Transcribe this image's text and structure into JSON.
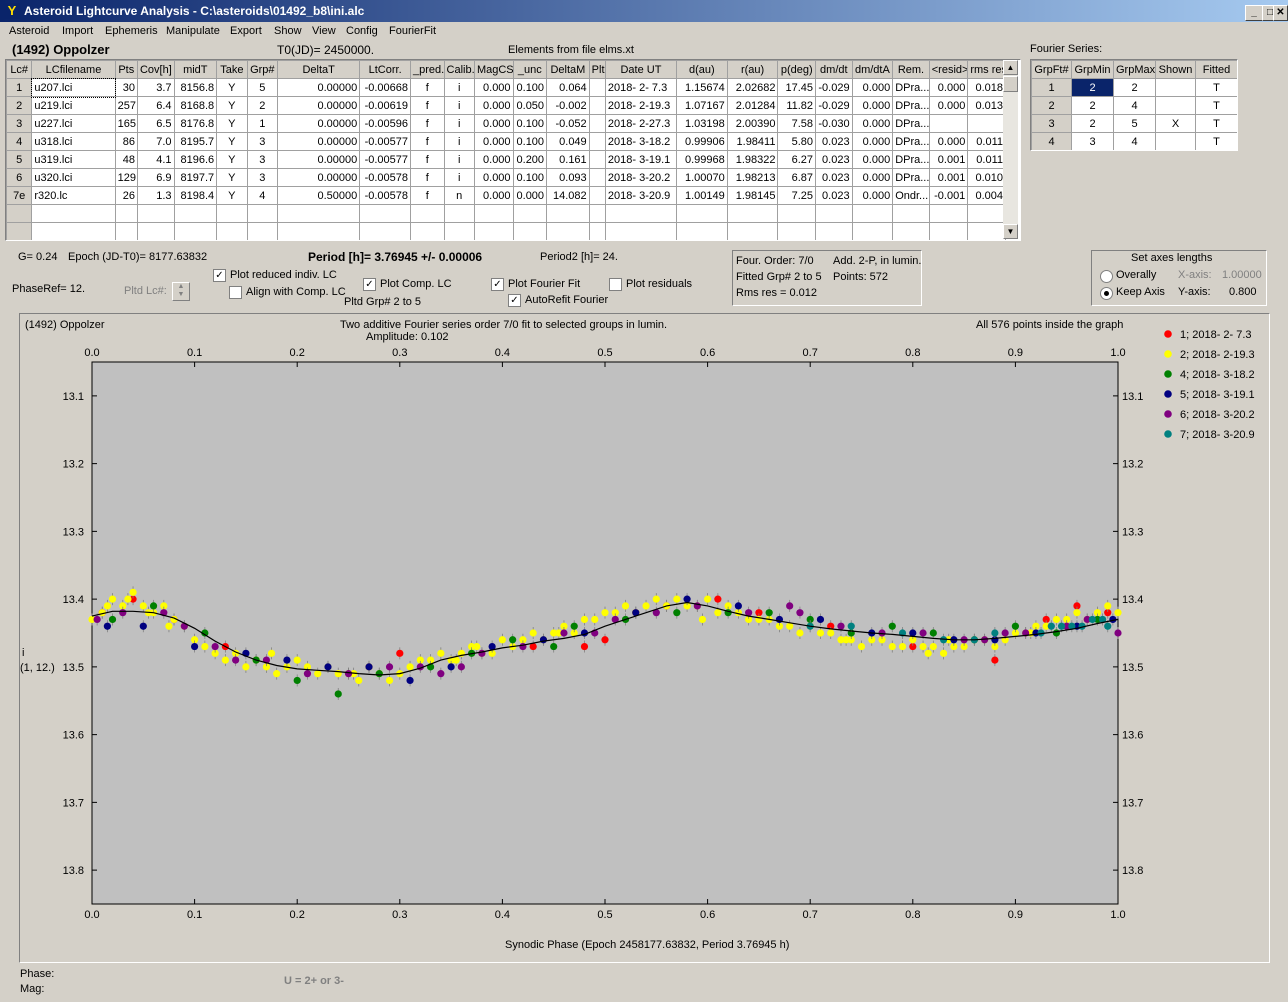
{
  "window": {
    "title": "Asteroid Lightcurve Analysis - C:\\asteroids\\01492_b8\\ini.alc",
    "app_icon_letter": "Y"
  },
  "menu": [
    "Asteroid",
    "Import",
    "Ephemeris",
    "Manipulate",
    "Export",
    "Show",
    "View",
    "Config",
    "FourierFit"
  ],
  "header": {
    "object": "(1492) Oppolzer",
    "t0": "T0(JD)= 2450000.",
    "elements": "Elements from file elms.xt",
    "fourier_label": "Fourier Series:"
  },
  "lc_table": {
    "columns": [
      "Lc#",
      "LCfilename",
      "Pts",
      "Cov[h]",
      "midT",
      "Take",
      "Grp#",
      "DeltaT",
      "LtCorr.",
      "_pred.",
      "Calib.",
      "MagCS",
      "_unc",
      "DeltaM",
      "Plt",
      "Date UT",
      "d(au)",
      "r(au)",
      "p(deg)",
      "dm/dt",
      "dm/dtA",
      "Rem.",
      "<resid>",
      "rms res"
    ],
    "rows": [
      [
        "1",
        "u207.lci",
        "30",
        "3.7",
        "8156.8",
        "Y",
        "5",
        "0.00000",
        "-0.00668",
        "f",
        "i",
        "0.000",
        "0.100",
        "0.064",
        "",
        "2018- 2- 7.3",
        "1.15674",
        "2.02682",
        "17.45",
        "-0.029",
        "0.000",
        "DPra...",
        "0.000",
        "0.018"
      ],
      [
        "2",
        "u219.lci",
        "257",
        "6.4",
        "8168.8",
        "Y",
        "2",
        "0.00000",
        "-0.00619",
        "f",
        "i",
        "0.000",
        "0.050",
        "-0.002",
        "",
        "2018- 2-19.3",
        "1.07167",
        "2.01284",
        "11.82",
        "-0.029",
        "0.000",
        "DPra...",
        "0.000",
        "0.013"
      ],
      [
        "3",
        "u227.lci",
        "165",
        "6.5",
        "8176.8",
        "Y",
        "1",
        "0.00000",
        "-0.00596",
        "f",
        "i",
        "0.000",
        "0.100",
        "-0.052",
        "",
        "2018- 2-27.3",
        "1.03198",
        "2.00390",
        "7.58",
        "-0.030",
        "0.000",
        "DPra...",
        "",
        ""
      ],
      [
        "4",
        "u318.lci",
        "86",
        "7.0",
        "8195.7",
        "Y",
        "3",
        "0.00000",
        "-0.00577",
        "f",
        "i",
        "0.000",
        "0.100",
        "0.049",
        "",
        "2018- 3-18.2",
        "0.99906",
        "1.98411",
        "5.80",
        "0.023",
        "0.000",
        "DPra...",
        "0.000",
        "0.011"
      ],
      [
        "5",
        "u319.lci",
        "48",
        "4.1",
        "8196.6",
        "Y",
        "3",
        "0.00000",
        "-0.00577",
        "f",
        "i",
        "0.000",
        "0.200",
        "0.161",
        "",
        "2018- 3-19.1",
        "0.99968",
        "1.98322",
        "6.27",
        "0.023",
        "0.000",
        "DPra...",
        "0.001",
        "0.011"
      ],
      [
        "6",
        "u320.lci",
        "129",
        "6.9",
        "8197.7",
        "Y",
        "3",
        "0.00000",
        "-0.00578",
        "f",
        "i",
        "0.000",
        "0.100",
        "0.093",
        "",
        "2018- 3-20.2",
        "1.00070",
        "1.98213",
        "6.87",
        "0.023",
        "0.000",
        "DPra...",
        "0.001",
        "0.010"
      ],
      [
        "7e",
        "r320.lc",
        "26",
        "1.3",
        "8198.4",
        "Y",
        "4",
        "0.50000",
        "-0.00578",
        "f",
        "n",
        "0.000",
        "0.000",
        "14.082",
        "",
        "2018- 3-20.9",
        "1.00149",
        "1.98145",
        "7.25",
        "0.023",
        "0.000",
        "Ondr...",
        "-0.001",
        "0.004"
      ]
    ]
  },
  "fourier_table": {
    "columns": [
      "GrpFt#",
      "GrpMin",
      "GrpMax",
      "Shown",
      "Fitted"
    ],
    "rows": [
      [
        "1",
        "2",
        "2",
        "",
        "T"
      ],
      [
        "2",
        "2",
        "4",
        "",
        "T"
      ],
      [
        "3",
        "2",
        "5",
        "X",
        "T"
      ],
      [
        "4",
        "3",
        "4",
        "",
        "T"
      ]
    ]
  },
  "info": {
    "g": "G= 0.24",
    "epoch": "Epoch (JD-T0)= 8177.63832",
    "period": "Period [h]= 3.76945 +/- 0.00006",
    "period2": "Period2 [h]= 24.",
    "phaseref": "PhaseRef= 12.",
    "pltd_lc": "Pltd Lc#:",
    "pltd_grp": "Pltd Grp#  2  to  5",
    "four_order": "Four. Order:  7/0",
    "add2p": "Add. 2-P, in lumin.",
    "fitted_grp": "Fitted Grp# 2 to 5",
    "points": "Points: 572",
    "rms": "Rms res     = 0.012"
  },
  "checkboxes": [
    {
      "label": "Plot reduced indiv. LC",
      "checked": true
    },
    {
      "label": "Align with Comp. LC",
      "checked": false
    },
    {
      "label": "Plot Comp. LC",
      "checked": true
    },
    {
      "label": "Plot Fourier Fit",
      "checked": true
    },
    {
      "label": "AutoRefit Fourier",
      "checked": true
    },
    {
      "label": "Plot residuals",
      "checked": false
    }
  ],
  "axes_box": {
    "title": "Set axes lengths",
    "overally": "Overally",
    "keep_axis": "Keep Axis",
    "xaxis_label": "X-axis:",
    "xaxis_value": "1.00000",
    "yaxis_label": "Y-axis:",
    "yaxis_value": "0.800"
  },
  "plot": {
    "name": "(1492) Oppolzer",
    "title": "Two additive Fourier series order 7/0 fit to selected groups in lumin.",
    "amplitude": "Amplitude: 0.102",
    "points_note": "All 576 points inside the graph",
    "ylabel_1": "i",
    "ylabel_2": "(1, 12.)",
    "xlabel": "Synodic Phase (Epoch 2458177.63832, Period 3.76945 h)"
  },
  "chart_data": {
    "type": "scatter",
    "xlim": [
      0.0,
      1.0
    ],
    "ylim": [
      13.85,
      13.05
    ],
    "y_inverted": true,
    "x_ticks": [
      "0.0",
      "0.1",
      "0.2",
      "0.3",
      "0.4",
      "0.5",
      "0.6",
      "0.7",
      "0.8",
      "0.9",
      "1.0"
    ],
    "y_ticks": [
      "13.1",
      "13.2",
      "13.3",
      "13.4",
      "13.5",
      "13.6",
      "13.7",
      "13.8"
    ],
    "background": "#c0c0c0",
    "series": [
      {
        "name": "1; 2018- 2- 7.3",
        "color": "#ff0000",
        "x": [
          0.01,
          0.04,
          0.08,
          0.13,
          0.27,
          0.3,
          0.43,
          0.48,
          0.5,
          0.53,
          0.56,
          0.61,
          0.65,
          0.72,
          0.8,
          0.88,
          0.93,
          0.96,
          0.99
        ],
        "y": [
          13.42,
          13.4,
          13.43,
          13.47,
          13.5,
          13.48,
          13.47,
          13.47,
          13.46,
          13.42,
          13.41,
          13.4,
          13.42,
          13.44,
          13.47,
          13.49,
          13.43,
          13.41,
          13.42
        ]
      },
      {
        "name": "2; 2018- 2-19.3",
        "color": "#ffff00",
        "x": [
          0.0,
          0.01,
          0.02,
          0.03,
          0.04,
          0.05,
          0.06,
          0.07,
          0.08,
          0.09,
          0.1,
          0.11,
          0.12,
          0.13,
          0.14,
          0.15,
          0.16,
          0.17,
          0.18,
          0.19,
          0.2,
          0.21,
          0.22,
          0.23,
          0.24,
          0.25,
          0.26,
          0.27,
          0.28,
          0.29,
          0.3,
          0.31,
          0.32,
          0.33,
          0.34,
          0.35,
          0.36,
          0.37,
          0.38,
          0.39,
          0.4,
          0.41,
          0.42,
          0.43,
          0.44,
          0.45,
          0.46,
          0.47,
          0.48,
          0.49,
          0.5,
          0.51,
          0.52,
          0.53,
          0.54,
          0.55,
          0.56,
          0.57,
          0.58,
          0.59,
          0.6,
          0.61,
          0.62,
          0.63,
          0.64,
          0.65,
          0.66,
          0.67,
          0.68,
          0.69,
          0.7,
          0.71,
          0.72,
          0.73,
          0.74,
          0.75,
          0.76,
          0.77,
          0.78,
          0.79,
          0.8,
          0.81,
          0.82,
          0.83,
          0.84,
          0.85,
          0.86,
          0.87,
          0.88,
          0.89,
          0.9,
          0.91,
          0.92,
          0.93,
          0.94,
          0.95,
          0.96,
          0.97,
          0.98,
          0.99,
          1.0,
          0.015,
          0.035,
          0.055,
          0.075,
          0.175,
          0.255,
          0.355,
          0.375,
          0.455,
          0.595,
          0.735,
          0.815,
          0.835,
          0.915
        ],
        "y": [
          13.43,
          13.42,
          13.4,
          13.41,
          13.39,
          13.41,
          13.42,
          13.41,
          13.43,
          13.44,
          13.46,
          13.47,
          13.48,
          13.49,
          13.48,
          13.5,
          13.49,
          13.5,
          13.51,
          13.5,
          13.49,
          13.5,
          13.51,
          13.5,
          13.51,
          13.51,
          13.52,
          13.5,
          13.51,
          13.52,
          13.51,
          13.5,
          13.49,
          13.49,
          13.48,
          13.49,
          13.48,
          13.47,
          13.48,
          13.48,
          13.46,
          13.47,
          13.46,
          13.45,
          13.46,
          13.45,
          13.44,
          13.45,
          13.43,
          13.43,
          13.42,
          13.42,
          13.41,
          13.42,
          13.41,
          13.4,
          13.41,
          13.4,
          13.41,
          13.41,
          13.4,
          13.42,
          13.41,
          13.42,
          13.43,
          13.43,
          13.43,
          13.44,
          13.44,
          13.45,
          13.44,
          13.45,
          13.45,
          13.46,
          13.46,
          13.47,
          13.46,
          13.46,
          13.47,
          13.47,
          13.46,
          13.47,
          13.47,
          13.48,
          13.47,
          13.47,
          13.46,
          13.46,
          13.47,
          13.46,
          13.45,
          13.45,
          13.44,
          13.44,
          13.43,
          13.43,
          13.42,
          13.43,
          13.42,
          13.41,
          13.42,
          13.41,
          13.4,
          13.42,
          13.44,
          13.48,
          13.51,
          13.49,
          13.47,
          13.45,
          13.43,
          13.46,
          13.48,
          13.46,
          13.45
        ]
      },
      {
        "name": "4; 2018- 3-18.2",
        "color": "#008000",
        "x": [
          0.02,
          0.06,
          0.11,
          0.16,
          0.2,
          0.24,
          0.28,
          0.33,
          0.37,
          0.41,
          0.45,
          0.47,
          0.52,
          0.57,
          0.62,
          0.66,
          0.7,
          0.74,
          0.78,
          0.82,
          0.86,
          0.9,
          0.94,
          0.98
        ],
        "y": [
          13.43,
          13.41,
          13.45,
          13.49,
          13.52,
          13.54,
          13.51,
          13.5,
          13.48,
          13.46,
          13.47,
          13.44,
          13.43,
          13.42,
          13.42,
          13.42,
          13.43,
          13.45,
          13.44,
          13.45,
          13.46,
          13.44,
          13.45,
          13.43
        ]
      },
      {
        "name": "5; 2018- 3-19.1",
        "color": "#000080",
        "x": [
          0.015,
          0.05,
          0.1,
          0.15,
          0.19,
          0.23,
          0.27,
          0.31,
          0.35,
          0.39,
          0.44,
          0.48,
          0.53,
          0.58,
          0.63,
          0.67,
          0.71,
          0.76,
          0.8,
          0.84,
          0.88,
          0.92,
          0.96,
          0.995
        ],
        "y": [
          13.44,
          13.44,
          13.47,
          13.48,
          13.49,
          13.5,
          13.5,
          13.52,
          13.5,
          13.47,
          13.46,
          13.45,
          13.42,
          13.4,
          13.41,
          13.43,
          13.43,
          13.45,
          13.45,
          13.46,
          13.46,
          13.45,
          13.44,
          13.43
        ]
      },
      {
        "name": "6; 2018- 3-20.2",
        "color": "#800080",
        "x": [
          0.005,
          0.03,
          0.07,
          0.09,
          0.12,
          0.14,
          0.17,
          0.21,
          0.25,
          0.29,
          0.32,
          0.34,
          0.36,
          0.38,
          0.42,
          0.46,
          0.49,
          0.51,
          0.55,
          0.59,
          0.64,
          0.68,
          0.69,
          0.73,
          0.77,
          0.81,
          0.85,
          0.87,
          0.89,
          0.91,
          0.95,
          0.97,
          1.0
        ],
        "y": [
          13.43,
          13.42,
          13.42,
          13.44,
          13.47,
          13.49,
          13.49,
          13.51,
          13.51,
          13.5,
          13.5,
          13.51,
          13.5,
          13.48,
          13.47,
          13.45,
          13.45,
          13.43,
          13.42,
          13.41,
          13.42,
          13.41,
          13.42,
          13.44,
          13.45,
          13.45,
          13.46,
          13.46,
          13.45,
          13.45,
          13.44,
          13.43,
          13.45
        ]
      },
      {
        "name": "7; 2018- 3-20.9",
        "color": "#008080",
        "x": [
          0.925,
          0.935,
          0.945,
          0.955,
          0.965,
          0.975,
          0.985,
          0.99,
          0.7,
          0.74,
          0.79,
          0.83,
          0.86,
          0.88
        ],
        "y": [
          13.45,
          13.44,
          13.44,
          13.44,
          13.44,
          13.43,
          13.43,
          13.44,
          13.44,
          13.44,
          13.45,
          13.46,
          13.46,
          13.45
        ]
      }
    ],
    "fit_curve": {
      "x": [
        0.0,
        0.02,
        0.04,
        0.06,
        0.08,
        0.1,
        0.12,
        0.14,
        0.16,
        0.18,
        0.2,
        0.22,
        0.24,
        0.26,
        0.28,
        0.3,
        0.32,
        0.34,
        0.36,
        0.38,
        0.4,
        0.42,
        0.44,
        0.46,
        0.48,
        0.5,
        0.52,
        0.54,
        0.56,
        0.58,
        0.6,
        0.62,
        0.64,
        0.66,
        0.68,
        0.7,
        0.72,
        0.74,
        0.76,
        0.78,
        0.8,
        0.82,
        0.84,
        0.86,
        0.88,
        0.9,
        0.92,
        0.94,
        0.96,
        0.98,
        1.0
      ],
      "y": [
        13.425,
        13.418,
        13.418,
        13.42,
        13.428,
        13.443,
        13.462,
        13.478,
        13.49,
        13.498,
        13.503,
        13.505,
        13.507,
        13.51,
        13.512,
        13.51,
        13.502,
        13.49,
        13.483,
        13.478,
        13.472,
        13.468,
        13.462,
        13.458,
        13.452,
        13.44,
        13.43,
        13.42,
        13.41,
        13.405,
        13.41,
        13.418,
        13.425,
        13.43,
        13.435,
        13.44,
        13.444,
        13.447,
        13.45,
        13.452,
        13.455,
        13.458,
        13.46,
        13.46,
        13.458,
        13.455,
        13.452,
        13.448,
        13.443,
        13.436,
        13.43
      ]
    }
  },
  "status": {
    "phase": "Phase:",
    "mag": "Mag:",
    "hint": "U = 2+ or 3-"
  }
}
